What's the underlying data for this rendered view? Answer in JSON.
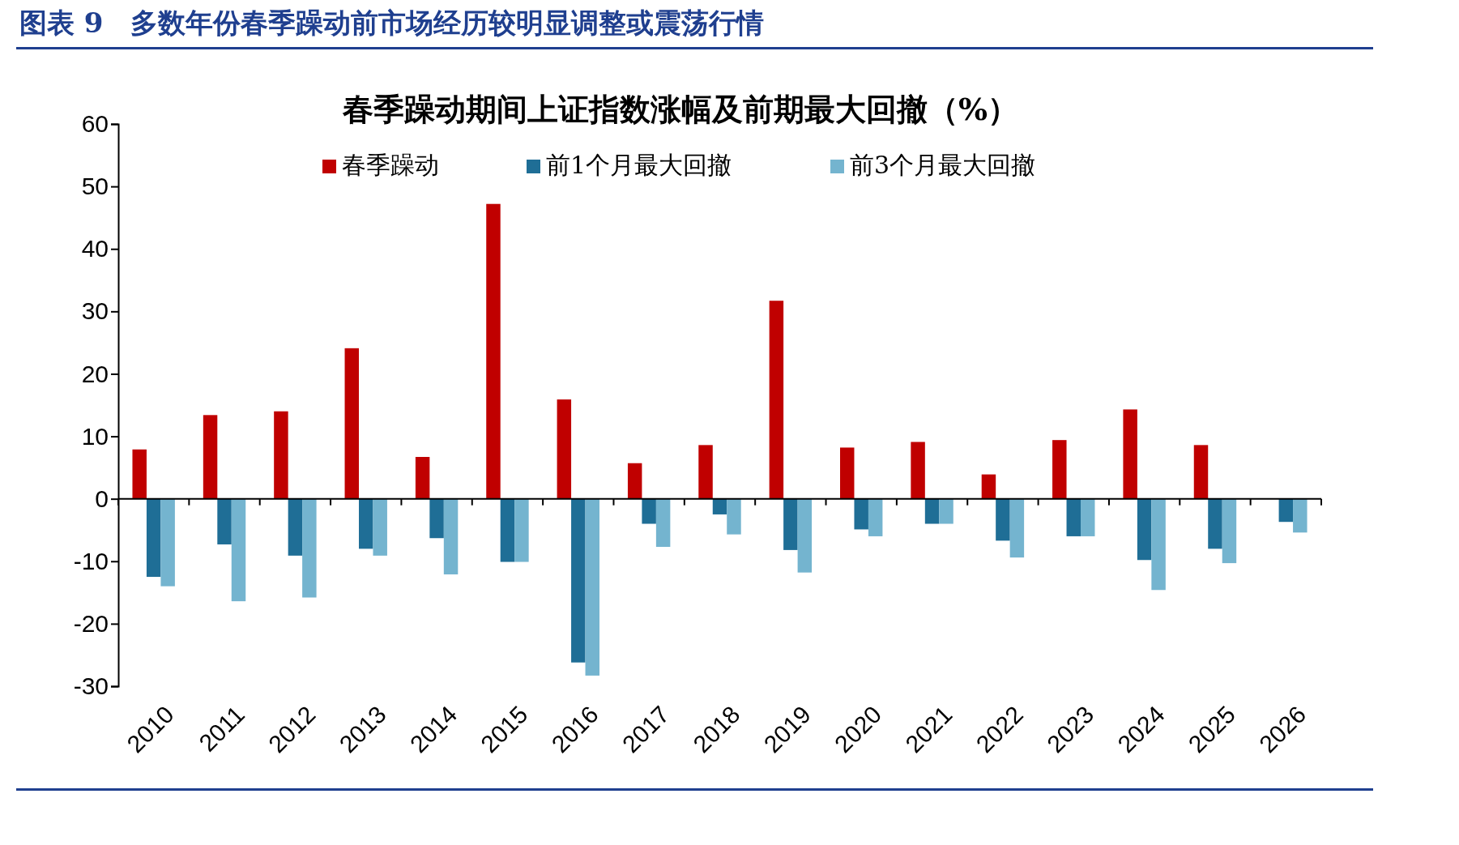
{
  "chart_data": {
    "type": "bar",
    "title": "图表 9　多数年份春季躁动前市场经历较明显调整或震荡行情",
    "subtitle": "春季躁动期间上证指数涨幅及前期最大回撤（%）",
    "categories": [
      "2010",
      "2011",
      "2012",
      "2013",
      "2014",
      "2015",
      "2016",
      "2017",
      "2018",
      "2019",
      "2020",
      "2021",
      "2022",
      "2023",
      "2024",
      "2025",
      "2026"
    ],
    "series": [
      {
        "name": "春季躁动",
        "color": "#c00000",
        "values": [
          7.9,
          13.4,
          14.0,
          24.1,
          6.7,
          47.2,
          15.9,
          5.7,
          8.6,
          31.7,
          8.2,
          9.1,
          3.9,
          9.4,
          14.3,
          8.6,
          null
        ]
      },
      {
        "name": "前1个月最大回撤",
        "color": "#1f6e96",
        "values": [
          -12.5,
          -7.3,
          -9.1,
          -8.0,
          -6.3,
          -10.1,
          -26.2,
          -4.0,
          -2.5,
          -8.2,
          -4.9,
          -4.0,
          -6.7,
          -6.0,
          -9.8,
          -8.0,
          -3.7
        ]
      },
      {
        "name": "前3个月最大回撤",
        "color": "#74b4cf",
        "values": [
          -14.0,
          -16.4,
          -15.8,
          -9.1,
          -12.1,
          -10.1,
          -28.3,
          -7.7,
          -5.7,
          -11.8,
          -6.0,
          -4.0,
          -9.4,
          -6.0,
          -14.6,
          -10.3,
          -5.4
        ]
      }
    ],
    "ylim": [
      -30,
      60
    ],
    "yticks": [
      -30,
      -20,
      -10,
      0,
      10,
      20,
      30,
      40,
      50,
      60
    ],
    "legend": "top"
  }
}
